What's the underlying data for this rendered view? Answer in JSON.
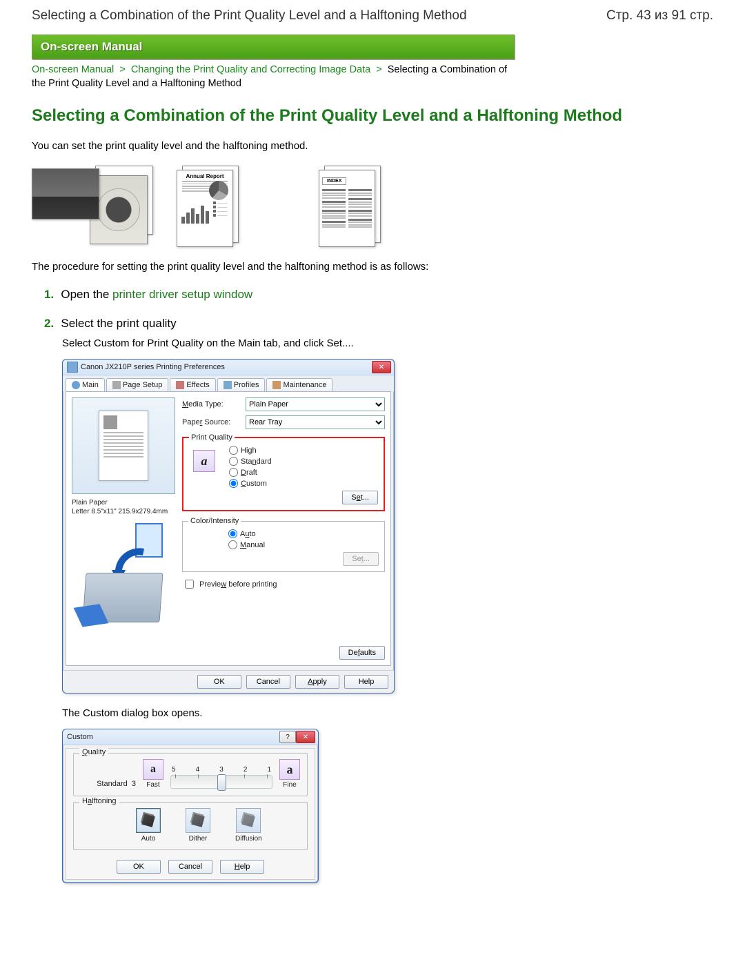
{
  "header": {
    "top_title": "Selecting a Combination of the Print Quality Level and a Halftoning Method",
    "page_counter": "Стр. 43 из 91 стр."
  },
  "banner_label": "On-screen Manual",
  "breadcrumbs": {
    "a1": "On-screen Manual",
    "a2": "Changing the Print Quality and Correcting Image Data",
    "tail": "Selecting a Combination of the Print Quality Level and a Halftoning Method"
  },
  "h1": "Selecting a Combination of the Print Quality Level and a Halftoning Method",
  "intro": "You can set the print quality level and the halftoning method.",
  "sample2_title": "Annual Report",
  "sample3_title": "INDEX",
  "after_samples": "The procedure for setting the print quality level and the halftoning method is as follows:",
  "steps": {
    "s1": {
      "num": "1.",
      "pre": "Open the ",
      "link": "printer driver setup window"
    },
    "s2": {
      "num": "2.",
      "title": "Select the print quality",
      "text": "Select Custom for Print Quality on the Main tab, and click Set....",
      "after_dialog": "The Custom dialog box opens."
    }
  },
  "dialog1": {
    "title": "Canon JX210P series Printing Preferences",
    "tabs": {
      "main": "Main",
      "page": "Page Setup",
      "effects": "Effects",
      "profiles": "Profiles",
      "maint": "Maintenance"
    },
    "media_type_label": "Media Type:",
    "media_type_value": "Plain Paper",
    "paper_source_label": "Paper Source:",
    "paper_source_value": "Rear Tray",
    "pq_legend": "Print Quality",
    "pq_high": "High",
    "pq_standard": "Standard",
    "pq_draft": "Draft",
    "pq_custom": "Custom",
    "pq_set": "Set...",
    "ci_legend": "Color/Intensity",
    "ci_auto": "Auto",
    "ci_manual": "Manual",
    "ci_set": "Set...",
    "preview_label": "Preview before printing",
    "paper_label_l1": "Plain Paper",
    "paper_label_l2": "Letter 8.5\"x11\" 215.9x279.4mm",
    "defaults": "Defaults",
    "ok": "OK",
    "cancel": "Cancel",
    "apply": "Apply",
    "help": "Help"
  },
  "dialog2": {
    "title": "Custom",
    "quality_legend": "Quality",
    "quality_name": "Standard",
    "quality_value": "3",
    "left_cap": "Fast",
    "right_cap": "Fine",
    "ticks": [
      "5",
      "4",
      "3",
      "2",
      "1"
    ],
    "slider_pos_percent": 50,
    "halftoning_legend": "Halftoning",
    "ht_auto": "Auto",
    "ht_dither": "Dither",
    "ht_diffusion": "Diffusion",
    "ok": "OK",
    "cancel": "Cancel",
    "help": "Help"
  }
}
